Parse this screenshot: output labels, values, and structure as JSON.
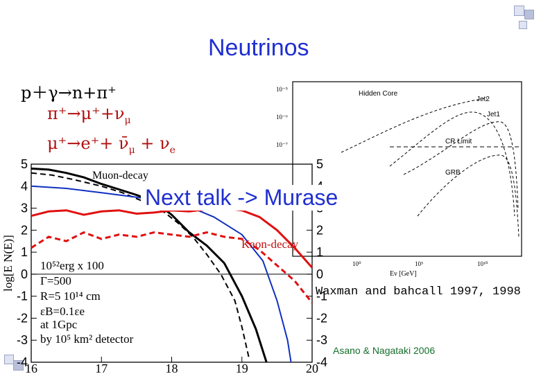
{
  "slide": {
    "title": "Neutrinos",
    "talk_note": "Next talk -> Murase",
    "reference_1": "Waxman and bahcall 1997, 1998",
    "reference_2": "Asano & Nagataki 2006"
  },
  "equations": {
    "line1": "p＋γ→n+π⁺",
    "line2": "π⁺→μ⁺+ν",
    "line2_sub": "μ",
    "line3": "μ⁺→e⁺+ ν̄",
    "line3_sub1": "μ",
    "line3_plus": "+ ν",
    "line3_sub2": "e"
  },
  "annotations": {
    "muon_decay": "Muon-decay",
    "kaon_decay": "Kaon-decay",
    "params": [
      "10⁵²erg x 100",
      "Γ=500",
      "R=5 10¹⁴ cm",
      "εB=0.1εe",
      "at 1Gpc",
      "by 10⁵ km² detector"
    ]
  },
  "colors": {
    "title": "#1f2fd0",
    "eq_red": "#b01010",
    "black_series": "#000000",
    "blue_series": "#1030c0",
    "red_series": "#e01010",
    "credit": "#14702a"
  },
  "chart_data": [
    {
      "type": "line",
      "title": "",
      "xlabel": "",
      "ylabel": "log[E N(E)]",
      "xlim": [
        16,
        20
      ],
      "ylim": [
        -4,
        5
      ],
      "xticks": [
        "16",
        "17",
        "18",
        "19",
        "20"
      ],
      "yticks_left": [
        "5",
        "4",
        "3",
        "2",
        "1",
        "0",
        "-1",
        "-2",
        "-3",
        "-4"
      ],
      "yticks_right": [
        "5",
        "4",
        "3",
        "2",
        "1",
        "0",
        "-1",
        "-2",
        "-3",
        "-4"
      ],
      "series": [
        {
          "color": "#000000",
          "dash": "solid",
          "width": 3,
          "x": [
            16.0,
            16.25,
            16.5,
            16.75,
            17.0,
            17.25,
            17.5,
            17.75,
            18.0,
            18.25,
            18.5,
            18.75,
            19.0,
            19.2,
            19.35
          ],
          "y": [
            4.8,
            4.75,
            4.6,
            4.4,
            4.1,
            3.85,
            3.6,
            3.3,
            2.7,
            1.9,
            1.3,
            0.5,
            -1.0,
            -2.5,
            -4.0
          ]
        },
        {
          "color": "#000000",
          "dash": "dashed",
          "width": 2,
          "x": [
            16.0,
            16.3,
            16.6,
            17.0,
            17.3,
            17.6,
            17.9,
            18.1,
            18.3,
            18.5,
            18.7,
            18.9,
            19.0,
            19.1
          ],
          "y": [
            4.6,
            4.5,
            4.3,
            4.0,
            3.7,
            3.3,
            2.8,
            2.3,
            1.7,
            0.9,
            0.0,
            -1.2,
            -2.4,
            -3.8
          ]
        },
        {
          "color": "#1030c0",
          "dash": "solid",
          "width": 2,
          "x": [
            16.0,
            16.5,
            17.0,
            17.5,
            18.0,
            18.3,
            18.6,
            19.0,
            19.3,
            19.5,
            19.65,
            19.7
          ],
          "y": [
            4.0,
            3.9,
            3.7,
            3.5,
            3.2,
            3.0,
            2.6,
            1.8,
            0.6,
            -1.2,
            -3.0,
            -4.0
          ]
        },
        {
          "color": "#e01010",
          "dash": "solid",
          "width": 3,
          "x": [
            16.0,
            16.25,
            16.5,
            16.75,
            17.0,
            17.25,
            17.5,
            17.75,
            18.0,
            18.25,
            18.5,
            18.75,
            19.0,
            19.25,
            19.5,
            19.75,
            20.0
          ],
          "y": [
            2.65,
            2.85,
            2.9,
            2.7,
            2.85,
            2.9,
            2.75,
            2.8,
            2.9,
            2.85,
            2.95,
            3.0,
            2.9,
            2.6,
            2.0,
            1.2,
            0.3
          ]
        },
        {
          "color": "#e01010",
          "dash": "dashed",
          "width": 3,
          "x": [
            16.0,
            16.25,
            16.5,
            16.75,
            17.0,
            17.25,
            17.5,
            17.75,
            18.0,
            18.25,
            18.5,
            18.75,
            19.0,
            19.25,
            19.5,
            19.75,
            20.0
          ],
          "y": [
            1.2,
            1.7,
            1.5,
            1.9,
            1.6,
            1.8,
            1.7,
            1.9,
            1.8,
            1.7,
            1.9,
            1.7,
            1.6,
            1.1,
            0.4,
            -0.3,
            -1.3
          ]
        }
      ]
    },
    {
      "type": "line",
      "title": "",
      "xlabel": "Eν [GeV]",
      "ylabel": "",
      "labels": [
        "Hidden Core",
        "Jet2",
        "Jet1",
        "CR Limit",
        "GRB"
      ],
      "xticks": [
        "10⁰",
        "10⁵",
        "10¹⁰"
      ],
      "yticks": [
        "10⁻⁵",
        "10⁻⁶",
        "10⁻⁷"
      ],
      "series": []
    }
  ]
}
